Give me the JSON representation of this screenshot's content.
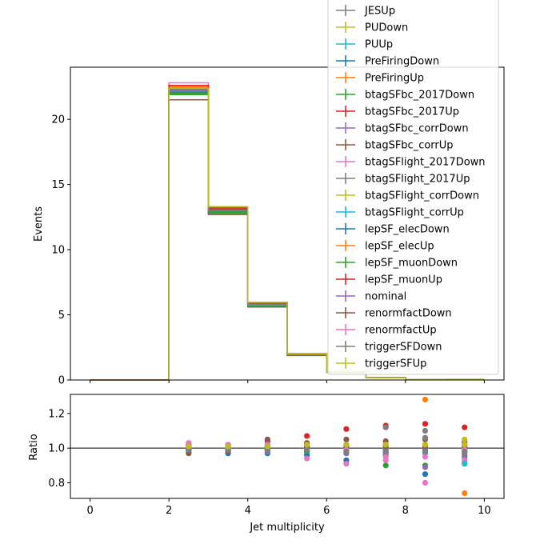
{
  "chart_data": [
    {
      "type": "step",
      "panel": "main",
      "xlabel": "",
      "ylabel": "Events",
      "xlim": [
        -0.5,
        10.5
      ],
      "ylim": [
        0,
        24
      ],
      "yticks": [
        0,
        5,
        10,
        15,
        20
      ],
      "xticks": [
        0,
        2,
        4,
        6,
        8,
        10
      ],
      "bin_edges": [
        0,
        1,
        2,
        3,
        4,
        5,
        6,
        7,
        8,
        9,
        10
      ],
      "grid": false,
      "legend_location": "upper-right",
      "series": [
        {
          "name": "JESUp",
          "color": "#7f7f7f",
          "values": [
            0,
            0,
            22.3,
            13.0,
            5.8,
            1.95,
            0.62,
            0.18,
            0.05,
            0.02
          ]
        },
        {
          "name": "PUDown",
          "color": "#bcbd22",
          "values": [
            0,
            0,
            22.5,
            13.2,
            5.9,
            2.0,
            0.63,
            0.18,
            0.05,
            0.02
          ]
        },
        {
          "name": "PUUp",
          "color": "#17becf",
          "values": [
            0,
            0,
            22.0,
            12.8,
            5.7,
            1.92,
            0.6,
            0.17,
            0.05,
            0.02
          ]
        },
        {
          "name": "PreFiringDown",
          "color": "#1f77b4",
          "values": [
            0,
            0,
            22.4,
            13.1,
            5.85,
            1.97,
            0.62,
            0.18,
            0.05,
            0.02
          ]
        },
        {
          "name": "PreFiringUp",
          "color": "#ff7f0e",
          "values": [
            0,
            0,
            22.2,
            13.0,
            5.8,
            1.95,
            0.61,
            0.18,
            0.05,
            0.02
          ]
        },
        {
          "name": "btagSFbc_2017Down",
          "color": "#2ca02c",
          "values": [
            0,
            0,
            21.9,
            12.8,
            5.7,
            1.9,
            0.6,
            0.17,
            0.05,
            0.02
          ]
        },
        {
          "name": "btagSFbc_2017Up",
          "color": "#d62728",
          "values": [
            0,
            0,
            22.6,
            13.3,
            5.95,
            2.02,
            0.64,
            0.19,
            0.05,
            0.02
          ]
        },
        {
          "name": "btagSFbc_corrDown",
          "color": "#9467bd",
          "values": [
            0,
            0,
            22.1,
            12.9,
            5.75,
            1.93,
            0.61,
            0.17,
            0.05,
            0.02
          ]
        },
        {
          "name": "btagSFbc_corrUp",
          "color": "#8c564b",
          "values": [
            0,
            0,
            21.5,
            12.7,
            5.6,
            1.88,
            0.58,
            0.17,
            0.05,
            0.02
          ]
        },
        {
          "name": "btagSFlight_2017Down",
          "color": "#e377c2",
          "values": [
            0,
            0,
            22.8,
            13.3,
            5.95,
            2.03,
            0.65,
            0.19,
            0.05,
            0.02
          ]
        },
        {
          "name": "btagSFlight_2017Up",
          "color": "#7f7f7f",
          "values": [
            0,
            0,
            22.4,
            13.1,
            5.85,
            1.97,
            0.62,
            0.18,
            0.05,
            0.02
          ]
        },
        {
          "name": "btagSFlight_corrDown",
          "color": "#bcbd22",
          "values": [
            0,
            0,
            22.3,
            13.1,
            5.8,
            1.96,
            0.62,
            0.18,
            0.05,
            0.02
          ]
        },
        {
          "name": "btagSFlight_corrUp",
          "color": "#17becf",
          "values": [
            0,
            0,
            22.2,
            13.0,
            5.8,
            1.95,
            0.61,
            0.18,
            0.05,
            0.02
          ]
        },
        {
          "name": "lepSF_elecDown",
          "color": "#1f77b4",
          "values": [
            0,
            0,
            22.1,
            12.9,
            5.75,
            1.94,
            0.61,
            0.17,
            0.05,
            0.02
          ]
        },
        {
          "name": "lepSF_elecUp",
          "color": "#ff7f0e",
          "values": [
            0,
            0,
            22.5,
            13.2,
            5.9,
            1.99,
            0.63,
            0.18,
            0.05,
            0.02
          ]
        },
        {
          "name": "lepSF_muonDown",
          "color": "#2ca02c",
          "values": [
            0,
            0,
            22.0,
            12.9,
            5.72,
            1.93,
            0.6,
            0.17,
            0.05,
            0.02
          ]
        },
        {
          "name": "lepSF_muonUp",
          "color": "#d62728",
          "values": [
            0,
            0,
            22.6,
            13.2,
            5.92,
            2.0,
            0.64,
            0.19,
            0.05,
            0.02
          ]
        },
        {
          "name": "nominal",
          "color": "#9467bd",
          "values": [
            0,
            0,
            22.3,
            13.05,
            5.82,
            1.96,
            0.62,
            0.18,
            0.05,
            0.02
          ]
        },
        {
          "name": "renormfactDown",
          "color": "#8c564b",
          "values": [
            0,
            0,
            22.4,
            13.1,
            5.85,
            1.97,
            0.62,
            0.18,
            0.05,
            0.02
          ]
        },
        {
          "name": "renormfactUp",
          "color": "#e377c2",
          "values": [
            0,
            0,
            22.2,
            13.0,
            5.78,
            1.95,
            0.61,
            0.18,
            0.05,
            0.02
          ]
        },
        {
          "name": "triggerSFDown",
          "color": "#7f7f7f",
          "values": [
            0,
            0,
            22.2,
            13.0,
            5.8,
            1.95,
            0.61,
            0.18,
            0.05,
            0.02
          ]
        },
        {
          "name": "triggerSFUp",
          "color": "#bcbd22",
          "values": [
            0,
            0,
            22.4,
            13.3,
            5.95,
            2.0,
            0.63,
            0.18,
            0.05,
            0.02
          ]
        }
      ]
    },
    {
      "type": "scatter",
      "panel": "ratio",
      "xlabel": "Jet multiplicity",
      "ylabel": "Ratio",
      "xlim": [
        -0.5,
        10.5
      ],
      "ylim": [
        0.71,
        1.31
      ],
      "yticks": [
        0.8,
        1.0,
        1.2
      ],
      "xticks": [
        0,
        2,
        4,
        6,
        8,
        10
      ],
      "reference_line": 1.0,
      "grid": false,
      "x": [
        2.5,
        3.5,
        4.5,
        5.5,
        6.5,
        7.5,
        8.5,
        9.5
      ],
      "series": [
        {
          "name": "JESUp",
          "color": "#7f7f7f",
          "values": [
            1.01,
            1.0,
            1.0,
            0.99,
            1.0,
            0.98,
            1.1,
            1.0
          ]
        },
        {
          "name": "PUDown",
          "color": "#bcbd22",
          "values": [
            1.01,
            1.01,
            1.02,
            1.02,
            1.02,
            1.02,
            1.02,
            1.03
          ]
        },
        {
          "name": "PUUp",
          "color": "#17becf",
          "values": [
            0.99,
            0.98,
            0.98,
            0.98,
            0.97,
            0.97,
            0.97,
            0.92
          ]
        },
        {
          "name": "PreFiringDown",
          "color": "#1f77b4",
          "values": [
            1.0,
            0.97,
            0.97,
            0.96,
            0.93,
            0.96,
            0.85,
            0.95
          ]
        },
        {
          "name": "PreFiringUp",
          "color": "#ff7f0e",
          "values": [
            1.0,
            1.0,
            1.0,
            1.01,
            1.01,
            1.01,
            1.28,
            0.74
          ]
        },
        {
          "name": "btagSFbc_2017Down",
          "color": "#2ca02c",
          "values": [
            0.98,
            0.99,
            0.99,
            0.98,
            0.98,
            0.9,
            0.9,
            0.91
          ]
        },
        {
          "name": "btagSFbc_2017Up",
          "color": "#d62728",
          "values": [
            1.02,
            1.01,
            1.04,
            1.07,
            1.11,
            1.13,
            1.14,
            1.12
          ]
        },
        {
          "name": "btagSFbc_corrDown",
          "color": "#9467bd",
          "values": [
            0.99,
            0.99,
            0.98,
            0.98,
            0.97,
            0.97,
            0.89,
            0.96
          ]
        },
        {
          "name": "btagSFbc_corrUp",
          "color": "#8c564b",
          "values": [
            0.97,
            0.98,
            1.05,
            1.03,
            1.05,
            1.04,
            1.05,
            1.04
          ]
        },
        {
          "name": "btagSFlight_2017Down",
          "color": "#e377c2",
          "values": [
            1.03,
            1.02,
            1.02,
            0.94,
            0.91,
            0.93,
            0.8,
            0.93
          ]
        },
        {
          "name": "btagSFlight_2017Up",
          "color": "#7f7f7f",
          "values": [
            1.0,
            1.01,
            1.01,
            1.01,
            1.0,
            1.12,
            1.06,
            0.97
          ]
        },
        {
          "name": "btagSFlight_corrDown",
          "color": "#bcbd22",
          "values": [
            1.0,
            1.0,
            1.01,
            1.0,
            1.0,
            1.0,
            1.0,
            1.05
          ]
        },
        {
          "name": "btagSFlight_corrUp",
          "color": "#17becf",
          "values": [
            1.0,
            1.0,
            1.0,
            1.0,
            1.0,
            1.0,
            0.99,
            0.91
          ]
        },
        {
          "name": "lepSF_elecDown",
          "color": "#1f77b4",
          "values": [
            0.99,
            0.99,
            0.99,
            0.99,
            0.99,
            0.99,
            0.99,
            0.99
          ]
        },
        {
          "name": "lepSF_elecUp",
          "color": "#ff7f0e",
          "values": [
            1.01,
            1.01,
            1.01,
            1.01,
            1.01,
            1.01,
            1.01,
            1.01
          ]
        },
        {
          "name": "lepSF_muonDown",
          "color": "#2ca02c",
          "values": [
            0.99,
            0.99,
            0.99,
            0.98,
            0.98,
            0.98,
            0.98,
            0.98
          ]
        },
        {
          "name": "lepSF_muonUp",
          "color": "#d62728",
          "values": [
            1.01,
            1.01,
            1.01,
            1.02,
            1.02,
            1.02,
            1.02,
            1.02
          ]
        },
        {
          "name": "nominal",
          "color": "#9467bd",
          "values": [
            1.0,
            1.0,
            1.0,
            1.0,
            1.0,
            1.0,
            1.0,
            1.0
          ]
        },
        {
          "name": "renormfactDown",
          "color": "#8c564b",
          "values": [
            1.0,
            1.0,
            1.01,
            1.01,
            1.01,
            1.01,
            1.01,
            1.01
          ]
        },
        {
          "name": "renormfactUp",
          "color": "#e377c2",
          "values": [
            1.0,
            1.0,
            0.99,
            0.99,
            0.99,
            0.95,
            0.95,
            0.99
          ]
        },
        {
          "name": "triggerSFDown",
          "color": "#7f7f7f",
          "values": [
            0.99,
            0.99,
            0.99,
            0.99,
            0.98,
            0.98,
            0.98,
            0.98
          ]
        },
        {
          "name": "triggerSFUp",
          "color": "#bcbd22",
          "values": [
            1.01,
            1.01,
            1.01,
            1.02,
            1.02,
            1.02,
            1.02,
            1.02
          ]
        }
      ]
    }
  ]
}
